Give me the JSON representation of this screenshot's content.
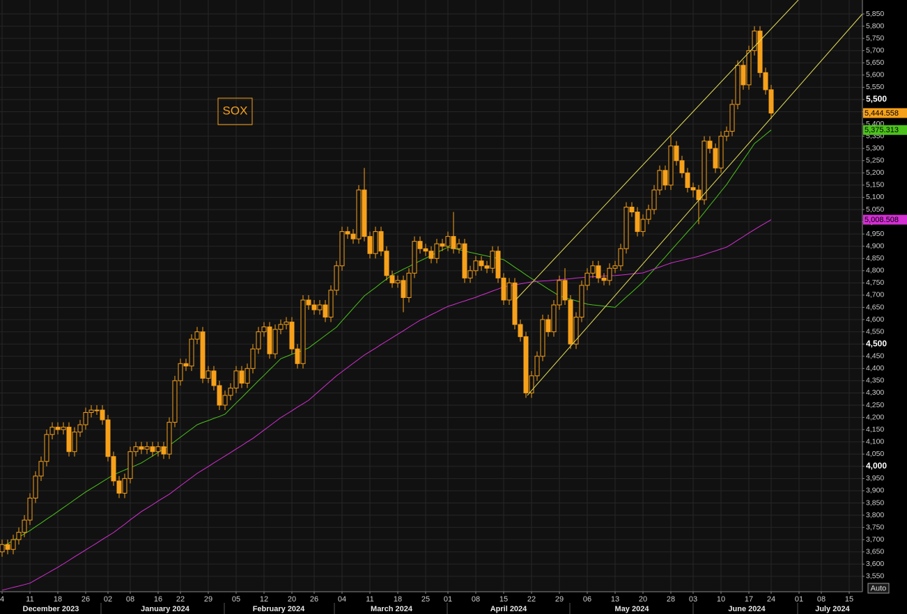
{
  "chart_data": {
    "type": "candlestick",
    "annotation": "SOX",
    "button_label": "Auto",
    "grid": true,
    "ylim": [
      3487,
      5907
    ],
    "yticks": [
      {
        "value": 3550,
        "label": "3,550"
      },
      {
        "value": 3600,
        "label": "3,600"
      },
      {
        "value": 3650,
        "label": "3,650"
      },
      {
        "value": 3700,
        "label": "3,700"
      },
      {
        "value": 3750,
        "label": "3,750"
      },
      {
        "value": 3800,
        "label": "3,800"
      },
      {
        "value": 3850,
        "label": "3,850"
      },
      {
        "value": 3900,
        "label": "3,900"
      },
      {
        "value": 3950,
        "label": "3,950"
      },
      {
        "value": 4000,
        "label": "4,000"
      },
      {
        "value": 4050,
        "label": "4,050"
      },
      {
        "value": 4100,
        "label": "4,100"
      },
      {
        "value": 4150,
        "label": "4,150"
      },
      {
        "value": 4200,
        "label": "4,200"
      },
      {
        "value": 4250,
        "label": "4,250"
      },
      {
        "value": 4300,
        "label": "4,300"
      },
      {
        "value": 4350,
        "label": "4,350"
      },
      {
        "value": 4400,
        "label": "4,400"
      },
      {
        "value": 4450,
        "label": "4,450"
      },
      {
        "value": 4500,
        "label": "4,500"
      },
      {
        "value": 4550,
        "label": "4,550"
      },
      {
        "value": 4600,
        "label": "4,600"
      },
      {
        "value": 4650,
        "label": "4,650"
      },
      {
        "value": 4700,
        "label": "4,700"
      },
      {
        "value": 4750,
        "label": "4,750"
      },
      {
        "value": 4800,
        "label": "4,800"
      },
      {
        "value": 4850,
        "label": "4,850"
      },
      {
        "value": 4900,
        "label": "4,900"
      },
      {
        "value": 4950,
        "label": "4,950"
      },
      {
        "value": 5000,
        "label": "5,000"
      },
      {
        "value": 5050,
        "label": "5,050"
      },
      {
        "value": 5100,
        "label": "5,100"
      },
      {
        "value": 5150,
        "label": "5,150"
      },
      {
        "value": 5200,
        "label": "5,200"
      },
      {
        "value": 5250,
        "label": "5,250"
      },
      {
        "value": 5300,
        "label": "5,300"
      },
      {
        "value": 5350,
        "label": "5,350"
      },
      {
        "value": 5400,
        "label": "5,400"
      },
      {
        "value": 5450,
        "label": "5,450"
      },
      {
        "value": 5500,
        "label": "5,500"
      },
      {
        "value": 5550,
        "label": "5,550"
      },
      {
        "value": 5600,
        "label": "5,600"
      },
      {
        "value": 5650,
        "label": "5,650"
      },
      {
        "value": 5700,
        "label": "5,700"
      },
      {
        "value": 5750,
        "label": "5,750"
      },
      {
        "value": 5800,
        "label": "5,800"
      },
      {
        "value": 5850,
        "label": "5,850"
      }
    ],
    "month_labels": [
      "December 2023",
      "January 2024",
      "February 2024",
      "March 2024",
      "April 2024",
      "May 2024",
      "June 2024",
      "July 2024"
    ],
    "categories": [
      "4",
      null,
      null,
      null,
      null,
      "11",
      null,
      null,
      null,
      null,
      "18",
      null,
      null,
      null,
      null,
      "26",
      null,
      null,
      null,
      "02",
      null,
      null,
      null,
      "08",
      null,
      null,
      null,
      null,
      "16",
      null,
      null,
      null,
      "22",
      null,
      null,
      null,
      null,
      "29",
      null,
      null,
      null,
      null,
      "05",
      null,
      null,
      null,
      null,
      "12",
      null,
      null,
      null,
      null,
      "20",
      null,
      null,
      null,
      "26",
      null,
      null,
      null,
      null,
      "04",
      null,
      null,
      null,
      null,
      "11",
      null,
      null,
      null,
      null,
      "18",
      null,
      null,
      null,
      null,
      "25",
      null,
      null,
      null,
      "01",
      null,
      null,
      null,
      null,
      "08",
      null,
      null,
      null,
      null,
      "15",
      null,
      null,
      null,
      null,
      "22",
      null,
      null,
      null,
      null,
      "29",
      null,
      null,
      null,
      null,
      "06",
      null,
      null,
      null,
      null,
      "13",
      null,
      null,
      null,
      null,
      "20",
      null,
      null,
      null,
      null,
      "28",
      null,
      null,
      null,
      "03",
      null,
      null,
      null,
      null,
      "10",
      null,
      null,
      null,
      null,
      "17",
      null,
      null,
      null,
      "24",
      null,
      null,
      null,
      null,
      "01",
      null,
      null,
      null,
      "08",
      null,
      null,
      null,
      null,
      "15",
      null,
      null
    ],
    "candles": {
      "color": "#f7a11a",
      "last_value_label": "5,444.558",
      "open": [
        3650,
        3680,
        3660,
        3700,
        3730,
        3780,
        3870,
        3960,
        4020,
        4130,
        4160,
        4150,
        4160,
        4060,
        4140,
        4170,
        4220,
        4230,
        4230,
        4190,
        4040,
        3940,
        3890,
        3950,
        4060,
        4080,
        4070,
        4080,
        4060,
        4080,
        4050,
        4180,
        4350,
        4420,
        4410,
        4520,
        4550,
        4360,
        4390,
        4330,
        4250,
        4290,
        4320,
        4390,
        4340,
        4400,
        4480,
        4550,
        4570,
        4460,
        4560,
        4580,
        4590,
        4480,
        4420,
        4680,
        4660,
        4640,
        4660,
        4610,
        4720,
        4820,
        4960,
        4950,
        4930,
        5130,
        4940,
        4870,
        4960,
        4880,
        4780,
        4750,
        4760,
        4690,
        4790,
        4920,
        4890,
        4880,
        4850,
        4910,
        4900,
        4940,
        4890,
        4910,
        4770,
        4800,
        4840,
        4820,
        4810,
        4880,
        4770,
        4680,
        4750,
        4580,
        4530,
        4300,
        4370,
        4450,
        4600,
        4550,
        4660,
        4760,
        4680,
        4500,
        4610,
        4740,
        4790,
        4820,
        4770,
        4760,
        4810,
        4820,
        4890,
        5060,
        5040,
        4960,
        5010,
        5050,
        5130,
        5210,
        5150,
        5310,
        5250,
        5200,
        5140,
        5130,
        5090,
        5330,
        5300,
        5220,
        5350,
        5370,
        5480,
        5640,
        5560,
        5700,
        5780,
        5610,
        5540,
        null,
        null,
        null,
        null,
        null,
        null,
        null,
        null,
        null,
        null,
        null,
        null,
        null,
        null,
        null,
        null
      ],
      "high": [
        3700,
        3700,
        3720,
        3750,
        3800,
        3890,
        3980,
        4040,
        4150,
        4180,
        4180,
        4180,
        4180,
        4160,
        4190,
        4240,
        4250,
        4250,
        4250,
        4210,
        4060,
        3960,
        3970,
        4080,
        4100,
        4100,
        4100,
        4100,
        4100,
        4100,
        4200,
        4370,
        4440,
        4440,
        4540,
        4570,
        4570,
        4410,
        4410,
        4350,
        4310,
        4340,
        4410,
        4410,
        4420,
        4500,
        4570,
        4590,
        4590,
        4580,
        4600,
        4610,
        4610,
        4500,
        4700,
        4700,
        4680,
        4680,
        4680,
        4740,
        4840,
        4980,
        4980,
        4970,
        5150,
        5220,
        4960,
        4980,
        4980,
        4900,
        4800,
        4780,
        4780,
        4810,
        4940,
        4940,
        4910,
        4900,
        4930,
        4930,
        4960,
        5040,
        4930,
        4930,
        4820,
        4860,
        4860,
        4840,
        4900,
        4900,
        4790,
        4770,
        4770,
        4600,
        4550,
        4390,
        4470,
        4620,
        4620,
        4680,
        4780,
        4810,
        4700,
        4630,
        4760,
        4810,
        4840,
        4840,
        4790,
        4830,
        4840,
        4910,
        5080,
        5080,
        5060,
        5030,
        5070,
        5150,
        5230,
        5230,
        5350,
        5330,
        5270,
        5220,
        5160,
        5150,
        5350,
        5350,
        5320,
        5370,
        5390,
        5500,
        5660,
        5660,
        5720,
        5800,
        5800,
        5630,
        5560,
        null,
        null,
        null,
        null,
        null,
        null,
        null,
        null,
        null,
        null,
        null,
        null,
        null,
        null,
        null,
        null
      ],
      "low": [
        3630,
        3640,
        3640,
        3680,
        3710,
        3760,
        3850,
        3940,
        4000,
        4110,
        4130,
        4130,
        4040,
        4040,
        4120,
        4150,
        4200,
        4210,
        4170,
        4020,
        3920,
        3870,
        3870,
        3930,
        4040,
        4050,
        4050,
        4040,
        4040,
        4030,
        4030,
        4160,
        4330,
        4390,
        4390,
        4500,
        4340,
        4340,
        4310,
        4230,
        4230,
        4270,
        4300,
        4320,
        4320,
        4380,
        4460,
        4530,
        4440,
        4440,
        4540,
        4560,
        4460,
        4400,
        4400,
        4640,
        4620,
        4620,
        4590,
        4590,
        4700,
        4800,
        4930,
        4910,
        4910,
        4920,
        4850,
        4850,
        4860,
        4760,
        4730,
        4730,
        4630,
        4670,
        4770,
        4870,
        4860,
        4830,
        4830,
        4880,
        4880,
        4870,
        4870,
        4750,
        4750,
        4780,
        4800,
        4790,
        4790,
        4750,
        4660,
        4660,
        4560,
        4510,
        4280,
        4280,
        4350,
        4430,
        4530,
        4530,
        4640,
        4660,
        4480,
        4480,
        4590,
        4720,
        4770,
        4750,
        4740,
        4740,
        4790,
        4800,
        4870,
        5020,
        4940,
        4940,
        4990,
        5030,
        5110,
        5130,
        5130,
        5230,
        5180,
        5120,
        5100,
        4990,
        5070,
        5280,
        5200,
        5200,
        5330,
        5350,
        5460,
        5540,
        5540,
        5680,
        5590,
        5520,
        5420,
        null,
        null,
        null,
        null,
        null,
        null,
        null,
        null,
        null,
        null,
        null,
        null,
        null,
        null,
        null,
        null
      ],
      "close": [
        3680,
        3660,
        3700,
        3730,
        3780,
        3870,
        3960,
        4020,
        4130,
        4160,
        4150,
        4160,
        4060,
        4140,
        4170,
        4220,
        4230,
        4230,
        4190,
        4040,
        3940,
        3890,
        3950,
        4060,
        4080,
        4070,
        4080,
        4060,
        4080,
        4050,
        4180,
        4350,
        4420,
        4410,
        4520,
        4550,
        4360,
        4390,
        4330,
        4250,
        4290,
        4320,
        4390,
        4340,
        4400,
        4480,
        4550,
        4570,
        4460,
        4560,
        4580,
        4590,
        4480,
        4420,
        4680,
        4660,
        4640,
        4660,
        4610,
        4720,
        4820,
        4960,
        4950,
        4930,
        5130,
        4940,
        4870,
        4960,
        4880,
        4780,
        4750,
        4760,
        4690,
        4790,
        4920,
        4890,
        4880,
        4850,
        4910,
        4900,
        4940,
        4890,
        4910,
        4770,
        4800,
        4840,
        4820,
        4810,
        4880,
        4770,
        4680,
        4750,
        4580,
        4530,
        4300,
        4370,
        4450,
        4600,
        4550,
        4660,
        4760,
        4680,
        4500,
        4610,
        4740,
        4790,
        4820,
        4770,
        4760,
        4810,
        4820,
        4890,
        5060,
        5040,
        4960,
        5010,
        5050,
        5130,
        5210,
        5150,
        5310,
        5250,
        5200,
        5140,
        5130,
        5090,
        5330,
        5300,
        5220,
        5350,
        5370,
        5480,
        5640,
        5560,
        5700,
        5780,
        5610,
        5540,
        5444.558,
        null,
        null,
        null,
        null,
        null,
        null,
        null,
        null,
        null,
        null,
        null,
        null,
        null,
        null,
        null,
        null
      ]
    },
    "series": [
      {
        "color": "#4cc21c",
        "last_value_label": "5,375.313",
        "values": [
          3670,
          3683,
          3697,
          3710,
          3724,
          3737,
          3753,
          3768,
          3784,
          3799,
          3815,
          3831,
          3847,
          3863,
          3879,
          3895,
          3909,
          3923,
          3937,
          3951,
          3965,
          3975,
          3985,
          3994,
          4004,
          4014,
          4028,
          4042,
          4057,
          4071,
          4085,
          4102,
          4119,
          4136,
          4153,
          4170,
          4179,
          4187,
          4196,
          4204,
          4213,
          4236,
          4259,
          4281,
          4304,
          4327,
          4350,
          4372,
          4395,
          4417,
          4440,
          4449,
          4458,
          4466,
          4475,
          4484,
          4501,
          4518,
          4535,
          4552,
          4569,
          4595,
          4620,
          4646,
          4671,
          4697,
          4714,
          4731,
          4749,
          4766,
          4783,
          4794,
          4806,
          4817,
          4829,
          4840,
          4851,
          4862,
          4874,
          4885,
          4896,
          4891,
          4886,
          4880,
          4875,
          4870,
          4865,
          4860,
          4855,
          4850,
          4845,
          4830,
          4814,
          4799,
          4783,
          4768,
          4754,
          4740,
          4725,
          4711,
          4697,
          4690,
          4683,
          4677,
          4670,
          4663,
          4660,
          4658,
          4655,
          4653,
          4650,
          4671,
          4692,
          4712,
          4733,
          4754,
          4780,
          4805,
          4831,
          4856,
          4882,
          4908,
          4933,
          4959,
          4984,
          5010,
          5038,
          5067,
          5095,
          5124,
          5152,
          5186,
          5219,
          5253,
          5286,
          5320,
          5338,
          5357,
          5375.313,
          null,
          null,
          null,
          null,
          null,
          null,
          null,
          null,
          null,
          null,
          null,
          null,
          null,
          null,
          null,
          null
        ]
      },
      {
        "color": "#d42fd4",
        "last_value_label": "5,008.508",
        "values": [
          3493,
          3499,
          3505,
          3510,
          3516,
          3522,
          3535,
          3548,
          3561,
          3574,
          3587,
          3601,
          3615,
          3630,
          3644,
          3658,
          3672,
          3686,
          3701,
          3715,
          3729,
          3746,
          3763,
          3781,
          3798,
          3815,
          3829,
          3843,
          3858,
          3872,
          3886,
          3903,
          3920,
          3937,
          3954,
          3971,
          3985,
          3999,
          4014,
          4028,
          4042,
          4056,
          4071,
          4085,
          4100,
          4114,
          4131,
          4148,
          4165,
          4182,
          4199,
          4213,
          4227,
          4242,
          4256,
          4270,
          4290,
          4310,
          4330,
          4350,
          4370,
          4387,
          4404,
          4421,
          4438,
          4455,
          4469,
          4483,
          4498,
          4512,
          4526,
          4540,
          4554,
          4569,
          4583,
          4597,
          4608,
          4620,
          4631,
          4643,
          4654,
          4661,
          4669,
          4676,
          4684,
          4691,
          4700,
          4708,
          4717,
          4725,
          4734,
          4738,
          4742,
          4746,
          4750,
          4754,
          4756,
          4758,
          4759,
          4761,
          4763,
          4765,
          4767,
          4770,
          4772,
          4774,
          4775,
          4776,
          4778,
          4779,
          4780,
          4782,
          4784,
          4787,
          4789,
          4791,
          4799,
          4807,
          4815,
          4823,
          4831,
          4837,
          4842,
          4848,
          4853,
          4859,
          4866,
          4874,
          4881,
          4889,
          4896,
          4910,
          4925,
          4939,
          4954,
          4968,
          4982,
          4995,
          5008.508,
          null,
          null,
          null,
          null,
          null,
          null,
          null,
          null,
          null,
          null,
          null,
          null,
          null,
          null,
          null,
          null
        ]
      }
    ]
  }
}
